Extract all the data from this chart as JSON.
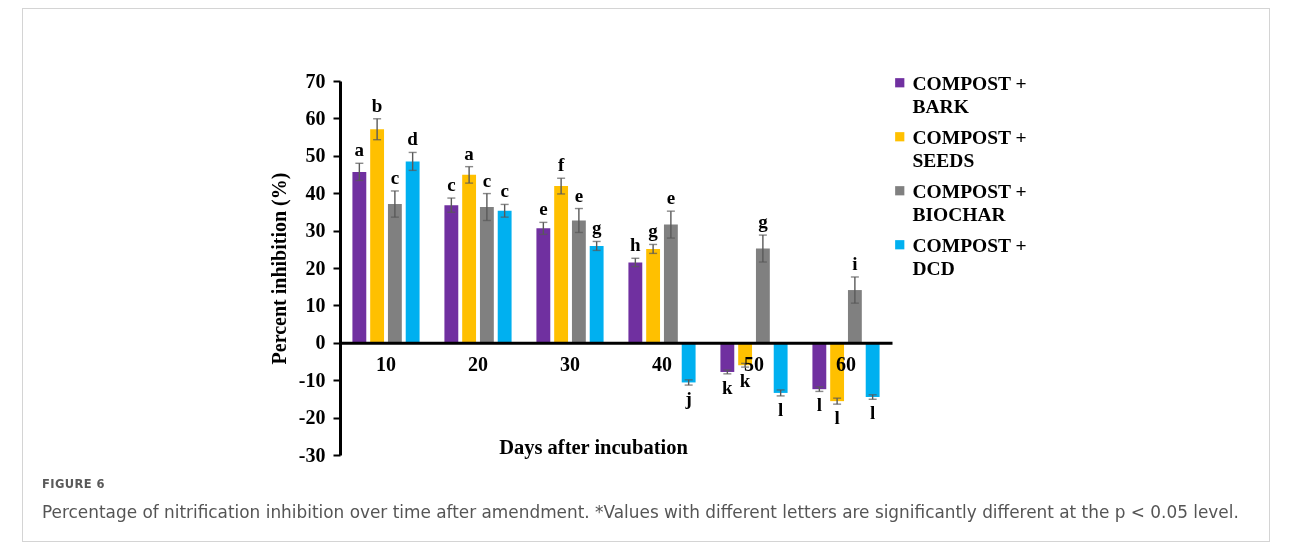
{
  "chart_data": {
    "type": "bar",
    "xlabel": "Days after incubation",
    "ylabel": "Percent inhibition (%)",
    "categories": [
      "10",
      "20",
      "30",
      "40",
      "50",
      "60"
    ],
    "ylim": [
      -30,
      70
    ],
    "yticks": [
      -30,
      -20,
      -10,
      0,
      10,
      20,
      30,
      40,
      50,
      60,
      70
    ],
    "legend": "right",
    "series": [
      {
        "name": "COMPOST + BARK",
        "color": "#7030a0",
        "values": [
          45.7,
          36.8,
          30.6,
          21.5,
          -7.8,
          -12.4
        ],
        "errors": [
          2.3,
          1.9,
          1.6,
          1.1,
          0.5,
          0.6
        ],
        "value_labels": [
          "a",
          "c",
          "e",
          "h",
          "k",
          "l"
        ]
      },
      {
        "name": "COMPOST + SEEDS",
        "color": "#ffc000",
        "values": [
          57.1,
          44.9,
          41.9,
          25.1,
          -6.0,
          -15.6
        ],
        "errors": [
          2.8,
          2.2,
          2.1,
          1.2,
          0.5,
          0.8
        ],
        "value_labels": [
          "b",
          "a",
          "f",
          "g",
          "k",
          "l"
        ]
      },
      {
        "name": "COMPOST + BIOCHAR",
        "color": "#808080",
        "values": [
          37.1,
          36.3,
          32.7,
          31.6,
          25.2,
          14.1
        ],
        "errors": [
          3.5,
          3.6,
          3.2,
          3.6,
          3.6,
          3.5
        ],
        "value_labels": [
          "c",
          "c",
          "e",
          "e",
          "g",
          "i"
        ]
      },
      {
        "name": "COMPOST + DCD",
        "color": "#00b0f0",
        "values": [
          48.5,
          35.3,
          25.9,
          -10.6,
          -13.4,
          -14.5
        ],
        "errors": [
          2.4,
          1.7,
          1.2,
          0.7,
          0.8,
          0.6
        ],
        "value_labels": [
          "d",
          "c",
          "g",
          "j",
          "l",
          "l"
        ]
      }
    ],
    "annotations": [
      "FIGURE 6",
      "Percentage of nitrification inhibition over time after amendment. *Values with different letters are significantly different at the p < 0.05 level."
    ]
  }
}
